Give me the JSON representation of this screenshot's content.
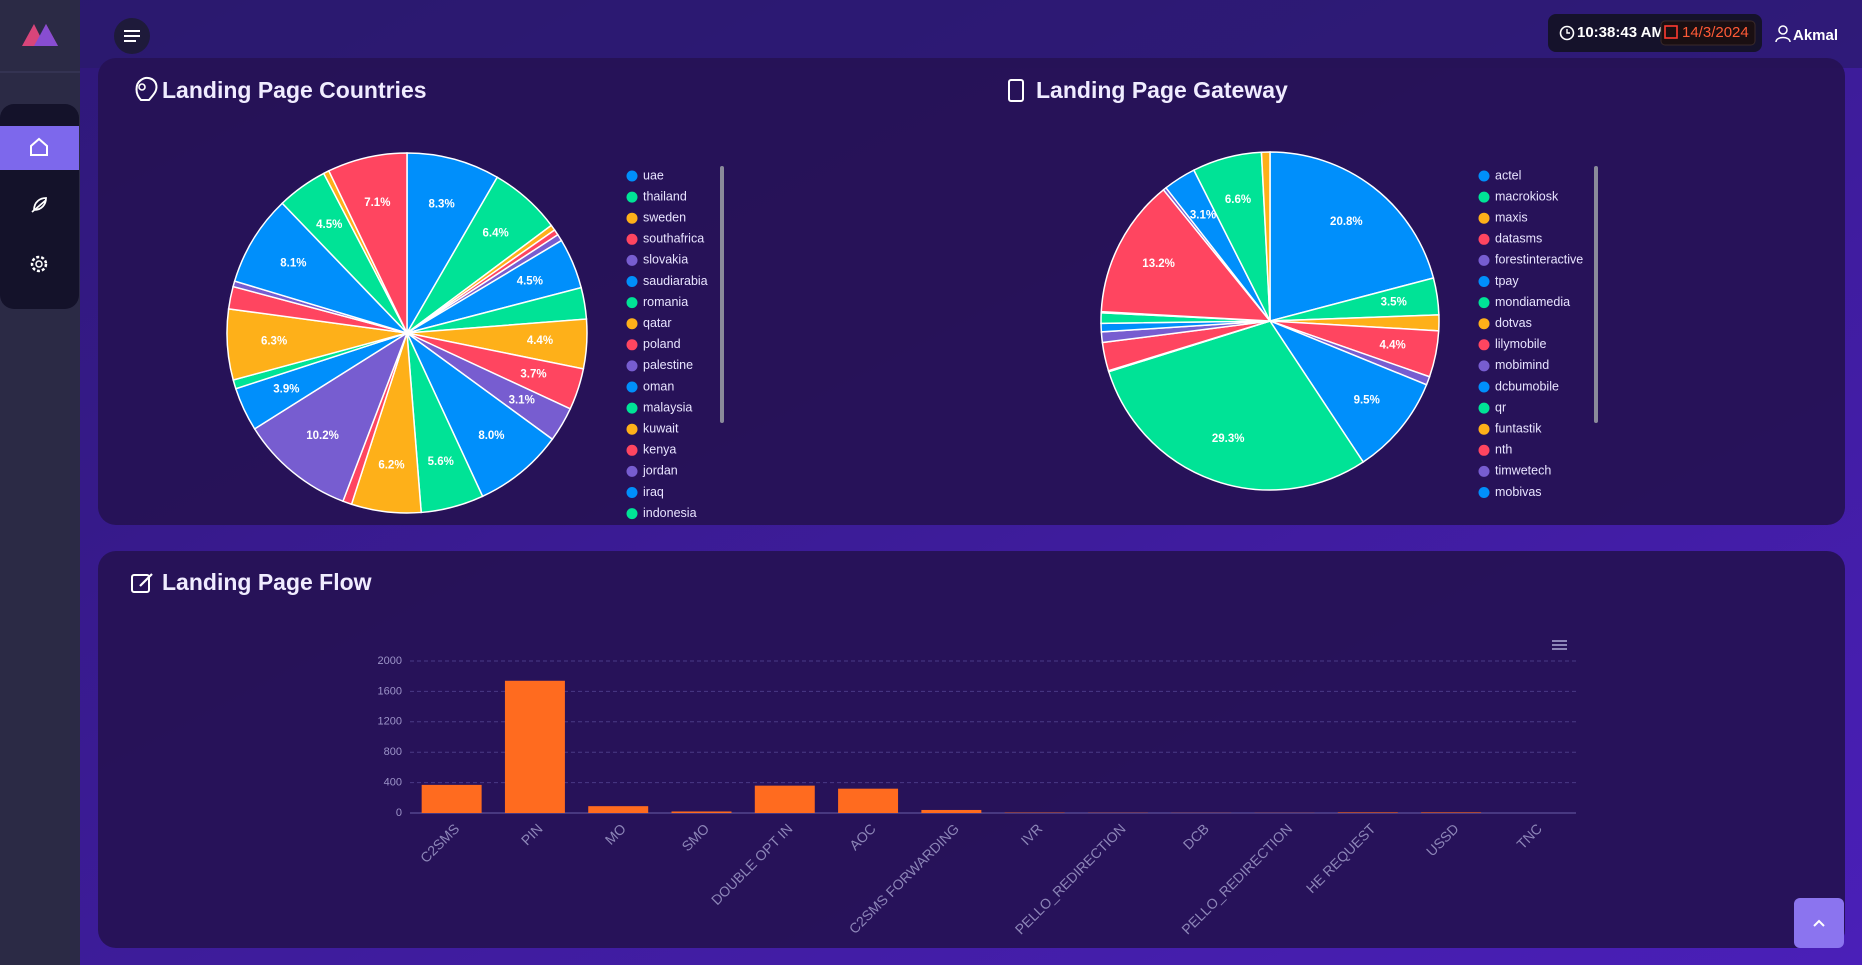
{
  "header": {
    "time": "10:38:43 AM",
    "date": "14/3/2024",
    "user": "Akmal"
  },
  "chart_data": [
    {
      "type": "pie",
      "title": "Landing Page Countries",
      "categories": [
        "uae",
        "thailand",
        "sweden",
        "southafrica",
        "slovakia",
        "saudiarabia",
        "romania",
        "qatar",
        "poland",
        "palestine",
        "oman",
        "malaysia",
        "kuwait",
        "kenya",
        "jordan",
        "iraq",
        "indonesia",
        null,
        null,
        null,
        null,
        null,
        null,
        null
      ],
      "values": [
        8.3,
        6.4,
        0.5,
        0.5,
        0.6,
        4.5,
        2.8,
        4.4,
        3.7,
        3.1,
        8.0,
        5.6,
        6.2,
        0.8,
        10.2,
        3.9,
        0.8,
        6.3,
        2.0,
        0.5,
        8.1,
        4.5,
        0.5,
        7.1
      ],
      "value_labels": [
        "8.3%",
        "6.4%",
        null,
        null,
        null,
        "4.5%",
        null,
        "4.4%",
        "3.7%",
        "3.1%",
        "8.0%",
        "5.6%",
        "6.2%",
        null,
        "10.2%",
        "3.9%",
        null,
        "6.3%",
        null,
        null,
        "8.1%",
        "4.5%",
        null,
        "7.1%"
      ],
      "colors": [
        "#008ffb",
        "#00e396",
        "#feb019",
        "#ff4560",
        "#775dd0"
      ]
    },
    {
      "type": "pie",
      "title": "Landing Page Gateway",
      "categories": [
        "actel",
        "macrokiosk",
        "maxis",
        "datasms",
        "forestinteractive",
        "tpay",
        "mondiamedia",
        "dotvas",
        "lilymobile",
        "mobimind",
        "dcbumobile",
        "qr",
        "funtastik",
        "nth",
        "timwetech",
        "mobivas",
        null,
        null
      ],
      "values": [
        20.8,
        3.5,
        1.5,
        4.4,
        0.8,
        9.5,
        29.3,
        0.1,
        2.7,
        1.0,
        0.8,
        1.0,
        0.1,
        13.2,
        0.3,
        3.1,
        6.6,
        0.8
      ],
      "value_labels": [
        "20.8%",
        "3.5%",
        null,
        "4.4%",
        null,
        "9.5%",
        "29.3%",
        null,
        null,
        null,
        null,
        null,
        null,
        "13.2%",
        null,
        "3.1%",
        "6.6%",
        null
      ],
      "colors": [
        "#008ffb",
        "#00e396",
        "#feb019",
        "#ff4560",
        "#775dd0"
      ]
    },
    {
      "type": "bar",
      "title": "Landing Page Flow",
      "categories": [
        "C2SMS",
        "PIN",
        "MO",
        "SMO",
        "DOUBLE OPT IN",
        "AOC",
        "C2SMS FORWARDING",
        "IVR",
        "PELLO_REDIRECTION",
        "DCB",
        "PELLO_REDIRECTION",
        "HE REQUEST",
        "USSD",
        "TNC"
      ],
      "values": [
        370,
        1740,
        90,
        20,
        360,
        320,
        40,
        5,
        3,
        2,
        2,
        8,
        8,
        0
      ],
      "color": "#ff6b1f",
      "ylim": [
        0,
        2000
      ],
      "yticks": [
        0,
        400,
        800,
        1200,
        1600,
        2000
      ],
      "grid": true
    }
  ]
}
